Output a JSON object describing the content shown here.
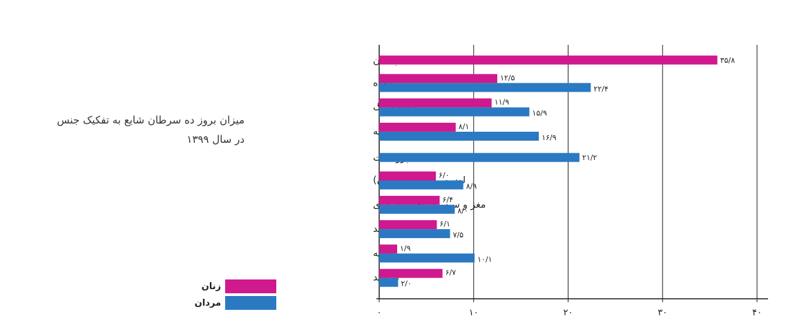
{
  "chart_data": {
    "type": "bar",
    "orientation": "horizontal",
    "title": "میزان بروز ده سرطان شایع  به تفکیک جنس",
    "subtitle": "در سال ۱۳۹۹",
    "categories": [
      "پستان",
      "معده",
      "روده بزرگ",
      "ریه",
      "پروستات",
      "لوسمی (سرطان خون)",
      "مغز و سیستم عصب مرکزی",
      "کبد",
      "مثانه",
      "تیروئید"
    ],
    "series": [
      {
        "name": "زنان",
        "color": "#d0188f",
        "values": [
          35.8,
          12.5,
          11.9,
          8.1,
          null,
          6.0,
          6.4,
          6.1,
          1.9,
          6.7
        ],
        "labels": [
          "۳۵/۸",
          "۱۲/۵",
          "۱۱/۹",
          "۸/۱",
          "",
          "۶/۰",
          "۶/۴",
          "۶/۱",
          "۱/۹",
          "۶/۷"
        ]
      },
      {
        "name": "مردان",
        "color": "#2b79c2",
        "values": [
          null,
          22.4,
          15.9,
          16.9,
          21.2,
          8.9,
          8.0,
          7.5,
          10.1,
          2.0
        ],
        "labels": [
          "",
          "۲۲/۴",
          "۱۵/۹",
          "۱۶/۹",
          "۲۱/۲",
          "۸/۹",
          "۸/۰",
          "۷/۵",
          "۱۰/۱",
          "۲/۰"
        ]
      }
    ],
    "xlim": [
      0,
      40
    ],
    "xticks": [
      0,
      10,
      20,
      30,
      40
    ],
    "xtick_labels": [
      "۰",
      "۱۰",
      "۲۰",
      "۳۰",
      "۴۰"
    ],
    "grid": true,
    "legend_position": "bottom-left"
  }
}
